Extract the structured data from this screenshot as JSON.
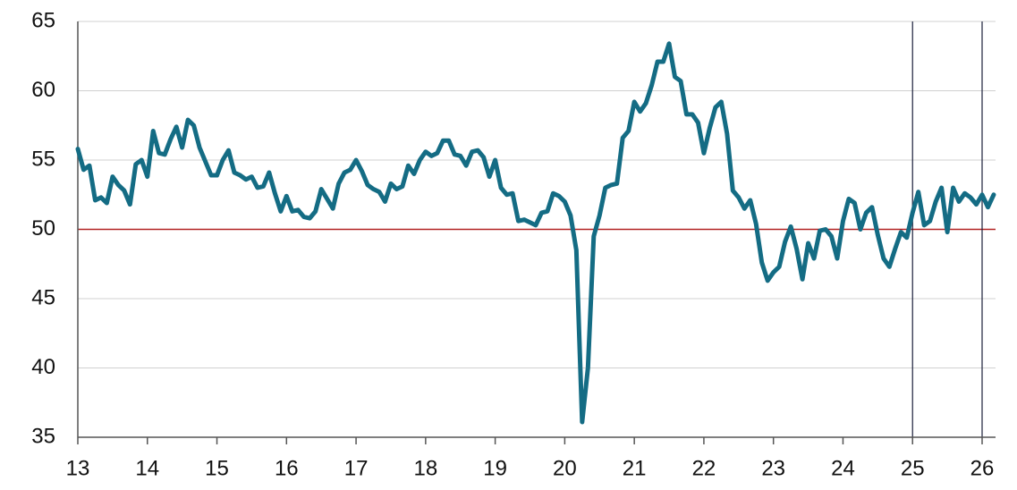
{
  "chart_data": {
    "type": "line",
    "categories": [
      "13",
      null,
      null,
      null,
      null,
      null,
      null,
      null,
      null,
      null,
      null,
      null,
      "14",
      null,
      null,
      null,
      null,
      null,
      null,
      null,
      null,
      null,
      null,
      null,
      "15",
      null,
      null,
      null,
      null,
      null,
      null,
      null,
      null,
      null,
      null,
      null,
      "16",
      null,
      null,
      null,
      null,
      null,
      null,
      null,
      null,
      null,
      null,
      null,
      "17",
      null,
      null,
      null,
      null,
      null,
      null,
      null,
      null,
      null,
      null,
      null,
      "18",
      null,
      null,
      null,
      null,
      null,
      null,
      null,
      null,
      null,
      null,
      null,
      "19",
      null,
      null,
      null,
      null,
      null,
      null,
      null,
      null,
      null,
      null,
      null,
      "20",
      null,
      null,
      null,
      null,
      null,
      null,
      null,
      null,
      null,
      null,
      null,
      "21",
      null,
      null,
      null,
      null,
      null,
      null,
      null,
      null,
      null,
      null,
      null,
      "22",
      null,
      null,
      null,
      null,
      null,
      null,
      null,
      null,
      null,
      null,
      null,
      "23",
      null,
      null,
      null,
      null,
      null,
      null,
      null,
      null,
      null,
      null,
      null,
      "24",
      null,
      null,
      null,
      null,
      null,
      null,
      null,
      null,
      null,
      null,
      null,
      "25",
      null,
      null,
      null,
      null,
      null,
      null,
      null,
      null,
      null,
      null,
      null,
      "26",
      null,
      null
    ],
    "series": [
      {
        "color": "#146c84",
        "values": [
          55.8,
          54.3,
          54.6,
          52.1,
          52.3,
          51.9,
          53.8,
          53.2,
          52.8,
          51.8,
          54.7,
          55.0,
          53.8,
          57.1,
          55.5,
          55.4,
          56.5,
          57.4,
          55.9,
          57.9,
          57.5,
          55.9,
          54.9,
          53.9,
          53.9,
          55.0,
          55.7,
          54.1,
          53.9,
          53.6,
          53.8,
          53.0,
          53.1,
          54.1,
          52.6,
          51.3,
          52.4,
          51.3,
          51.4,
          50.9,
          50.8,
          51.3,
          52.9,
          52.2,
          51.5,
          53.3,
          54.1,
          54.3,
          55.0,
          54.2,
          53.2,
          52.9,
          52.7,
          52.0,
          53.3,
          52.9,
          53.1,
          54.6,
          54.0,
          55.0,
          55.6,
          55.3,
          55.5,
          56.4,
          56.4,
          55.4,
          55.3,
          54.6,
          55.6,
          55.7,
          55.2,
          53.8,
          55.0,
          53.0,
          52.5,
          52.6,
          50.6,
          50.7,
          50.5,
          50.3,
          51.2,
          51.3,
          52.6,
          52.4,
          52.0,
          51.0,
          48.5,
          36.1,
          40.0,
          49.5,
          51.0,
          53.0,
          53.2,
          53.3,
          56.6,
          57.1,
          59.2,
          58.5,
          59.1,
          60.4,
          62.1,
          62.1,
          63.4,
          61.0,
          60.7,
          58.3,
          58.3,
          57.7,
          55.5,
          57.3,
          58.8,
          59.2,
          56.9,
          52.8,
          52.3,
          51.5,
          52.1,
          50.4,
          47.6,
          46.3,
          46.9,
          47.3,
          49.1,
          50.2,
          48.6,
          46.4,
          49.0,
          47.9,
          49.9,
          50.0,
          49.5,
          47.9,
          50.6,
          52.2,
          51.9,
          50.0,
          51.2,
          51.6,
          49.6,
          47.9,
          47.3,
          48.6,
          49.8,
          49.4,
          51.2,
          52.7,
          50.3,
          50.6,
          52.0,
          53.0,
          49.8,
          53.0,
          52.0,
          52.6,
          52.3,
          51.8,
          52.5,
          51.6,
          52.5
        ]
      }
    ],
    "ylim": [
      35,
      65
    ],
    "yticks": [
      35,
      40,
      45,
      50,
      55,
      60,
      65
    ],
    "grid": true,
    "reference_lines": {
      "y": 50,
      "y_color": "#b22222",
      "x": [
        "25",
        "26"
      ],
      "x_color": "#1a1f3a"
    }
  }
}
